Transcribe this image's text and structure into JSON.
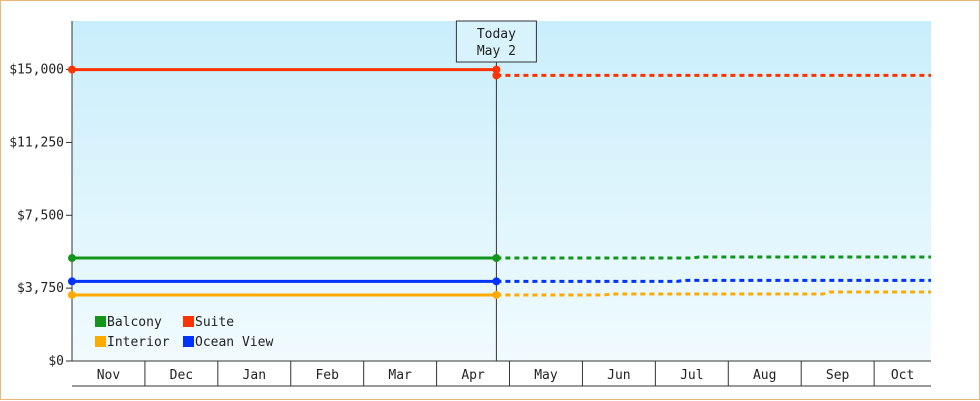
{
  "chart_data": {
    "type": "line",
    "ylim": [
      0,
      17500
    ],
    "y_ticks": [
      0,
      3750,
      7500,
      11250,
      15000
    ],
    "y_tick_labels": [
      "$0",
      "$3,750",
      "$7,500",
      "$11,250",
      "$15,000"
    ],
    "x_categories": [
      "Nov",
      "Dec",
      "Jan",
      "Feb",
      "Mar",
      "Apr",
      "May",
      "Jun",
      "Jul",
      "Aug",
      "Sep",
      "Oct"
    ],
    "x_range": [
      0,
      11.78
    ],
    "today": {
      "x": 5.82,
      "line1": "Today",
      "line2": "May 2"
    },
    "grid": false,
    "legend_position": "bottom-left",
    "series": [
      {
        "name": "Suite",
        "color": "#ff3300",
        "history": [
          [
            0,
            15000
          ],
          [
            5.82,
            15000
          ]
        ],
        "forecast": [
          [
            5.82,
            14700
          ],
          [
            11.78,
            14700
          ]
        ]
      },
      {
        "name": "Balcony",
        "color": "#11961b",
        "history": [
          [
            0,
            5300
          ],
          [
            5.82,
            5300
          ]
        ],
        "forecast": [
          [
            5.82,
            5300
          ],
          [
            8.5,
            5300
          ],
          [
            8.6,
            5350
          ],
          [
            11.78,
            5350
          ]
        ]
      },
      {
        "name": "Ocean View",
        "color": "#0033ff",
        "history": [
          [
            0,
            4100
          ],
          [
            5.82,
            4100
          ]
        ],
        "forecast": [
          [
            5.82,
            4100
          ],
          [
            8.3,
            4100
          ],
          [
            8.4,
            4150
          ],
          [
            11.78,
            4150
          ]
        ]
      },
      {
        "name": "Interior",
        "color": "#ffaa00",
        "history": [
          [
            0,
            3400
          ],
          [
            5.82,
            3400
          ]
        ],
        "forecast": [
          [
            5.82,
            3400
          ],
          [
            7.3,
            3400
          ],
          [
            7.4,
            3450
          ],
          [
            10.3,
            3450
          ],
          [
            10.4,
            3550
          ],
          [
            11.78,
            3550
          ]
        ]
      }
    ],
    "legend": [
      {
        "label": "Balcony",
        "color": "#11961b"
      },
      {
        "label": "Suite",
        "color": "#ff3300"
      },
      {
        "label": "Interior",
        "color": "#ffaa00"
      },
      {
        "label": "Ocean View",
        "color": "#0033ff"
      }
    ]
  }
}
